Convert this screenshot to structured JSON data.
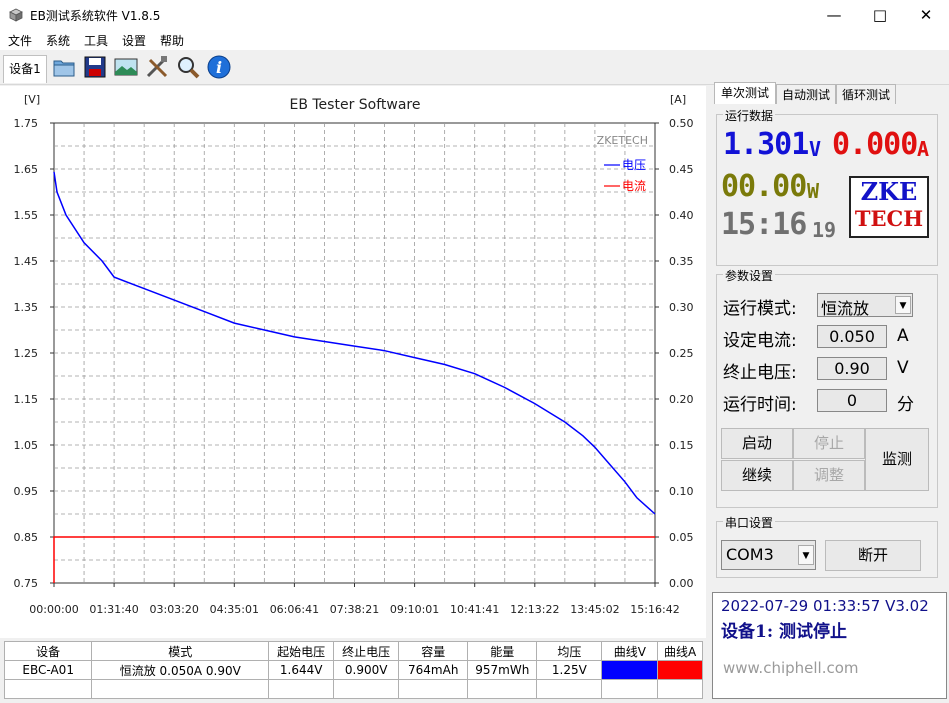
{
  "window": {
    "title": "EB测试系统软件 V1.8.5"
  },
  "menu": [
    "文件",
    "系统",
    "工具",
    "设置",
    "帮助"
  ],
  "toolbar": {
    "device_tab": "设备1"
  },
  "chart_data": {
    "type": "line",
    "title": "EB Tester Software",
    "ylabel_left": "[V]",
    "ylabel_right": "[A]",
    "watermark": "ZKETECH",
    "ylim_left": [
      0.75,
      1.75
    ],
    "ylim_right": [
      0.0,
      0.5
    ],
    "yticks_left": [
      "1.75",
      "1.65",
      "1.55",
      "1.45",
      "1.35",
      "1.25",
      "1.15",
      "1.05",
      "0.95",
      "0.85",
      "0.75"
    ],
    "yticks_right": [
      "0.50",
      "0.45",
      "0.40",
      "0.35",
      "0.30",
      "0.25",
      "0.20",
      "0.15",
      "0.10",
      "0.05",
      "0.00"
    ],
    "xticks": [
      "00:00:00",
      "01:31:40",
      "03:03:20",
      "04:35:01",
      "06:06:41",
      "07:38:21",
      "09:10:01",
      "10:41:41",
      "12:13:22",
      "13:45:02",
      "15:16:42"
    ],
    "x_fraction": [
      0,
      0.005,
      0.02,
      0.05,
      0.08,
      0.1,
      0.15,
      0.2,
      0.25,
      0.3,
      0.35,
      0.4,
      0.45,
      0.5,
      0.55,
      0.6,
      0.65,
      0.7,
      0.75,
      0.8,
      0.85,
      0.88,
      0.9,
      0.92,
      0.95,
      0.97,
      1.0
    ],
    "series": [
      {
        "name": "电压",
        "color": "#0000ff",
        "axis": "left",
        "values": [
          1.644,
          1.6,
          1.55,
          1.49,
          1.45,
          1.415,
          1.39,
          1.365,
          1.34,
          1.315,
          1.3,
          1.285,
          1.275,
          1.265,
          1.255,
          1.24,
          1.225,
          1.205,
          1.175,
          1.14,
          1.1,
          1.07,
          1.045,
          1.015,
          0.97,
          0.935,
          0.9
        ]
      },
      {
        "name": "电流",
        "color": "#ff0000",
        "axis": "right",
        "values": [
          0.05,
          0.05,
          0.05,
          0.05,
          0.05,
          0.05,
          0.05,
          0.05,
          0.05,
          0.05,
          0.05,
          0.05,
          0.05,
          0.05,
          0.05,
          0.05,
          0.05,
          0.05,
          0.05,
          0.05,
          0.05,
          0.05,
          0.05,
          0.05,
          0.05,
          0.05,
          0.05
        ]
      }
    ]
  },
  "table": {
    "headers": [
      "设备",
      "模式",
      "起始电压",
      "终止电压",
      "容量",
      "能量",
      "均压",
      "曲线V",
      "曲线A"
    ],
    "row": [
      "EBC-A01",
      "恒流放 0.050A 0.90V",
      "1.644V",
      "0.900V",
      "764mAh",
      "957mWh",
      "1.25V"
    ],
    "curve_colors": [
      "#0000ff",
      "#ff0000"
    ]
  },
  "tabs": [
    "单次测试",
    "自动测试",
    "循环测试"
  ],
  "run_data": {
    "title": "运行数据",
    "voltage": "1.301",
    "voltage_unit": "V",
    "current": "0.000",
    "current_unit": "A",
    "power": "00.00",
    "power_unit": "W",
    "time": "15:16",
    "time_sec": "19",
    "logo_top": "ZKE",
    "logo_bottom": "TECH"
  },
  "params": {
    "title": "参数设置",
    "mode_label": "运行模式:",
    "mode_value": "恒流放",
    "current_label": "设定电流:",
    "current_value": "0.050",
    "current_unit": "A",
    "voltage_label": "终止电压:",
    "voltage_value": "0.90",
    "voltage_unit": "V",
    "time_label": "运行时间:",
    "time_value": "0",
    "time_unit": "分"
  },
  "buttons": {
    "start": "启动",
    "stop": "停止",
    "continue": "继续",
    "adjust": "调整",
    "monitor": "监测"
  },
  "serial": {
    "title": "串口设置",
    "port": "COM3",
    "disconnect": "断开"
  },
  "status": {
    "line1": "2022-07-29 01:33:57 V3.02",
    "line2": "设备1: 测试停止"
  },
  "watermark_site": "www.chiphell.com"
}
